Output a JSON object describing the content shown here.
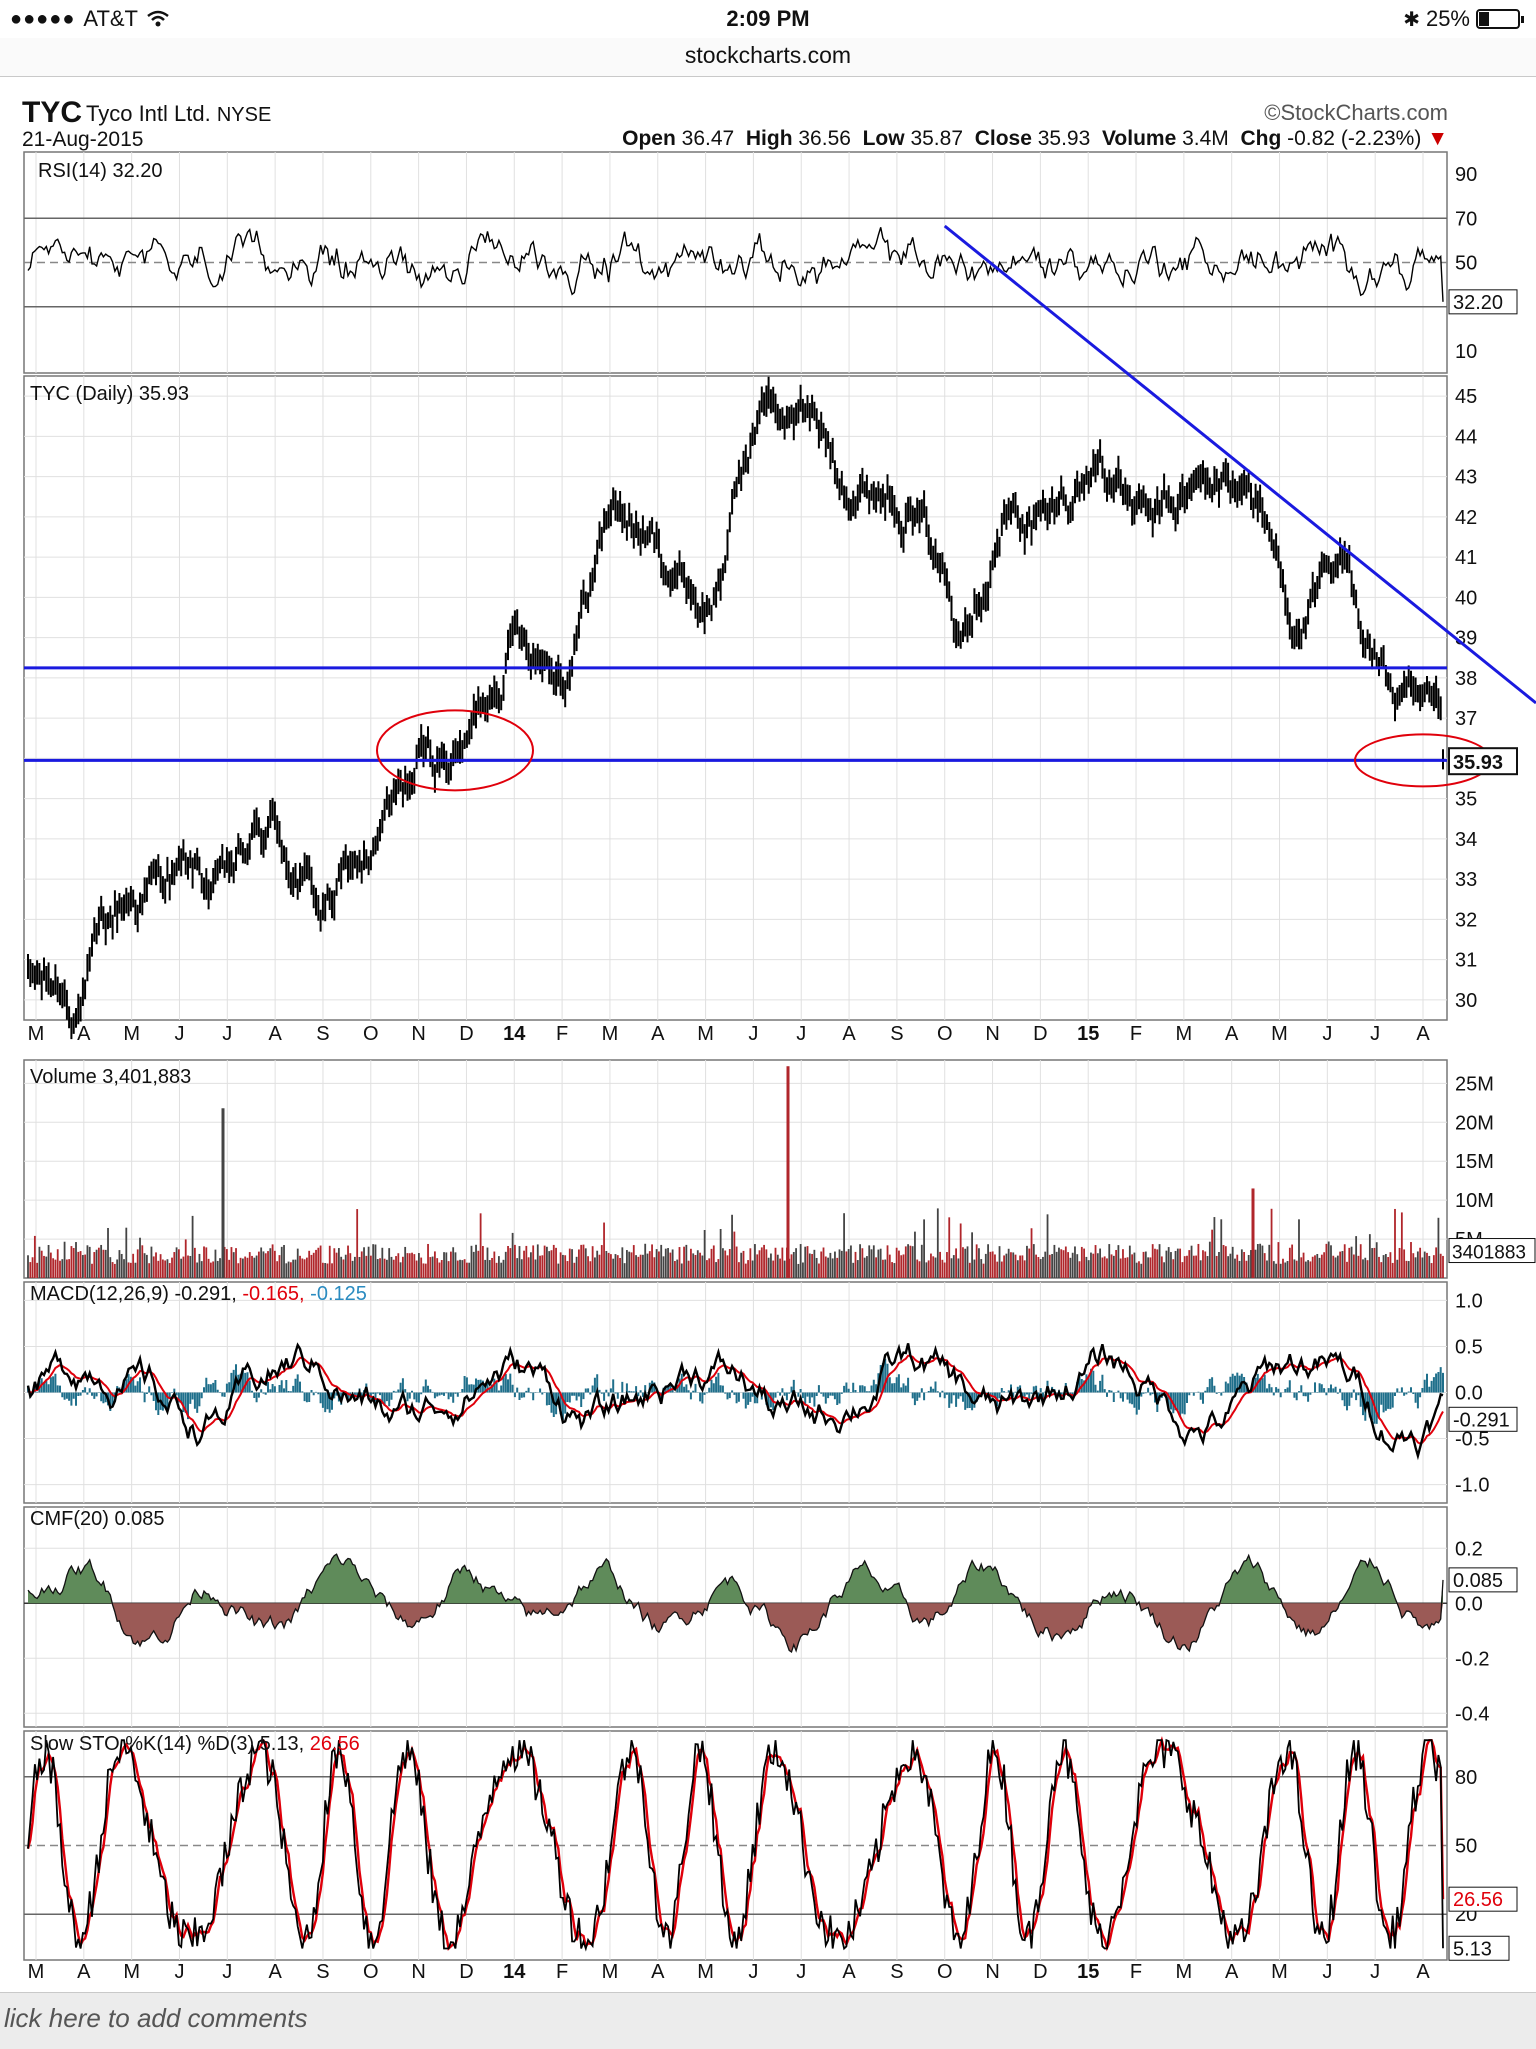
{
  "status_bar": {
    "signal_dots": "●●●●●",
    "carrier": "AT&T",
    "time": "2:09 PM",
    "battery": "25%",
    "battery_level": 0.25
  },
  "browser": {
    "url": "stockcharts.com"
  },
  "header": {
    "symbol": "TYC",
    "company": "Tyco Intl Ltd.",
    "exchange": "NYSE",
    "date": "21-Aug-2015",
    "brand": "©StockCharts.com",
    "open_label": "Open",
    "open": "36.47",
    "high_label": "High",
    "high": "36.56",
    "low_label": "Low",
    "low": "35.87",
    "close_label": "Close",
    "close": "35.93",
    "volume_label": "Volume",
    "volume": "3.4M",
    "chg_label": "Chg",
    "chg": "-0.82 (-2.23%)"
  },
  "months": [
    "M",
    "A",
    "M",
    "J",
    "J",
    "A",
    "S",
    "O",
    "N",
    "D",
    "14",
    "F",
    "M",
    "A",
    "M",
    "J",
    "J",
    "A",
    "S",
    "O",
    "N",
    "D",
    "15",
    "F",
    "M",
    "A",
    "M",
    "J",
    "J",
    "A"
  ],
  "panels": {
    "rsi": {
      "title": "RSI(14) 32.20",
      "ticks": [
        "90",
        "70",
        "50",
        "30",
        "10"
      ],
      "last": "32.20"
    },
    "price": {
      "title": "TYC (Daily) 35.93",
      "ticks": [
        "45",
        "44",
        "43",
        "42",
        "41",
        "40",
        "39",
        "38",
        "37",
        "36",
        "35",
        "34",
        "33",
        "32",
        "31",
        "30"
      ],
      "last": "35.93"
    },
    "volume": {
      "title": "Volume 3,401,883",
      "ticks": [
        "25M",
        "20M",
        "15M",
        "10M",
        "5M"
      ],
      "last": "3401883"
    },
    "macd": {
      "title_black": "MACD(12,26,9) -0.291, ",
      "title_red": "-0.165, ",
      "title_blue": "-0.125",
      "ticks": [
        "1.0",
        "0.5",
        "0.0",
        "-0.5",
        "-1.0"
      ],
      "last": "-0.291",
      "last2": "-0.165"
    },
    "cmf": {
      "title": "CMF(20) 0.085",
      "ticks": [
        "0.2",
        "0.0",
        "-0.2",
        "-0.4"
      ],
      "last": "0.085"
    },
    "sto": {
      "title_black": "Slow STO %K(14) %D(3) 5.13, ",
      "title_red": "26.56",
      "ticks": [
        "80",
        "50",
        "20"
      ],
      "last_k": "5.13",
      "last_d": "26.56"
    }
  },
  "footer": {
    "text": "lick here to add comments"
  },
  "colors": {
    "up": "#000000",
    "red": "#e0000b",
    "blue": "#1a1adf",
    "macd_hist": "#1f6f8b",
    "cmf_pos": "#5f8b5a",
    "cmf_neg": "#9b5a56",
    "vol_down": "#b0262b",
    "vol_up": "#444444"
  },
  "chart_data": [
    {
      "type": "line",
      "title": "TYC (Daily) 35.93",
      "x_ticks": [
        "M",
        "A",
        "M",
        "J",
        "J",
        "A",
        "S",
        "O",
        "N",
        "D",
        "14",
        "F",
        "M",
        "A",
        "M",
        "J",
        "J",
        "A",
        "S",
        "O",
        "N",
        "D",
        "15",
        "F",
        "M",
        "A",
        "M",
        "J",
        "J",
        "A"
      ],
      "ylim": [
        29.5,
        45.5
      ],
      "x": [
        "Mar-13",
        "Apr-13",
        "May-13",
        "Jun-13",
        "Jul-13",
        "Aug-13",
        "Sep-13",
        "Oct-13",
        "Nov-13",
        "Dec-13",
        "Jan-14",
        "Feb-14",
        "Mar-14",
        "Apr-14",
        "May-14",
        "Jun-14",
        "Jul-14",
        "Aug-14",
        "Sep-14",
        "Oct-14",
        "Nov-14",
        "Dec-14",
        "Jan-15",
        "Feb-15",
        "Mar-15",
        "Apr-15",
        "May-15",
        "Jun-15",
        "Jul-15",
        "Aug-15"
      ],
      "series": [
        {
          "name": "TYC",
          "values": [
            30.4,
            30.1,
            32.4,
            33.2,
            32.6,
            34.2,
            32.2,
            33.5,
            35.6,
            36.3,
            39.5,
            38.6,
            42.5,
            41.0,
            39.8,
            44.8,
            44.4,
            43.0,
            43.0,
            39.9,
            42.4,
            41.8,
            43.6,
            41.5,
            42.5,
            43.0,
            39.5,
            40.3,
            37.7,
            35.93
          ]
        }
      ],
      "annotations": {
        "horizontal_lines": [
          38.25,
          35.95
        ],
        "downtrend_start": [
          "Oct-14",
          70
        ],
        "last_price_circle": 35.93
      }
    },
    {
      "type": "line",
      "title": "RSI(14) 32.20",
      "ylim": [
        0,
        100
      ],
      "reference_lines": [
        70,
        50,
        30
      ],
      "last": 32.2
    },
    {
      "type": "bar",
      "title": "Volume 3,401,883",
      "ylim": [
        0,
        28000000
      ],
      "spikes": [
        {
          "x": "Jul-13",
          "value": 21800000
        },
        {
          "x": "Jun-14",
          "value": 27200000
        },
        {
          "x": "May-15",
          "value": 11500000
        }
      ],
      "last": 3401883
    },
    {
      "type": "line",
      "title": "MACD(12,26,9) -0.291, -0.165, -0.125",
      "ylim": [
        -1.2,
        1.2
      ],
      "series": [
        {
          "name": "MACD",
          "last": -0.291
        },
        {
          "name": "Signal",
          "last": -0.165
        },
        {
          "name": "Histogram",
          "last": -0.125
        }
      ]
    },
    {
      "type": "area",
      "title": "CMF(20) 0.085",
      "ylim": [
        -0.45,
        0.35
      ],
      "last": 0.085
    },
    {
      "type": "line",
      "title": "Slow STO %K(14) %D(3) 5.13, 26.56",
      "ylim": [
        0,
        100
      ],
      "reference_lines": [
        80,
        50,
        20
      ],
      "series": [
        {
          "name": "%K",
          "last": 5.13
        },
        {
          "name": "%D",
          "last": 26.56
        }
      ]
    }
  ]
}
